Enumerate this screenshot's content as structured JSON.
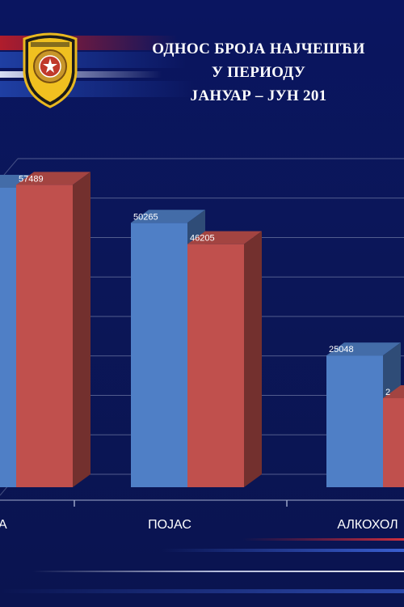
{
  "header": {
    "title_lines": [
      "ОДНОС БРОЈА НАЈЧЕШЋИ",
      "У ПЕРИОДУ",
      "ЈАНУАР – ЈУН 201"
    ]
  },
  "logo": {
    "icon": "police-badge-icon"
  },
  "chart_data": {
    "type": "bar",
    "title": "",
    "categories": [
      "А",
      "ПОЈАС",
      "АЛКОХОЛ"
    ],
    "series": [
      {
        "color": "#4f7fc6",
        "values": [
          null,
          50265,
          25048
        ],
        "labels": [
          "",
          "50265",
          "25048"
        ]
      },
      {
        "color": "#c0504d",
        "values": [
          57489,
          46205,
          null
        ],
        "labels": [
          "57489",
          "46205",
          "2"
        ]
      }
    ],
    "ylim": [
      0,
      60000
    ],
    "grid": true
  }
}
